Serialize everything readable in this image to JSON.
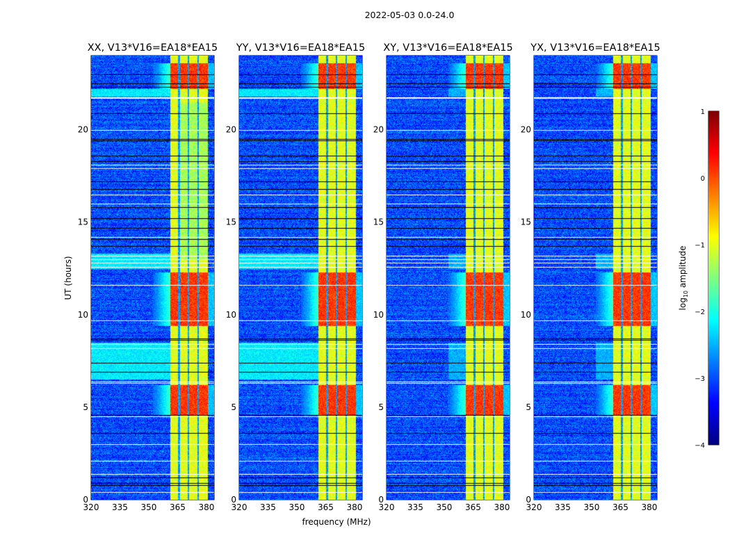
{
  "chart_data": {
    "type": "heatmap",
    "suptitle": "2022-05-03 0.0-24.0",
    "xlabel": "frequency (MHz)",
    "ylabel": "UT (hours)",
    "xlim": [
      320,
      384
    ],
    "ylim": [
      0,
      24
    ],
    "xticks": [
      "320",
      "335",
      "350",
      "365",
      "380"
    ],
    "xtick_values": [
      320,
      335,
      350,
      365,
      380
    ],
    "yticks": [
      "0",
      "5",
      "10",
      "15",
      "20"
    ],
    "ytick_values": [
      0,
      5,
      10,
      15,
      20
    ],
    "panels": [
      {
        "title": "XX, V13*V16=EA18*EA15",
        "pol": "XX"
      },
      {
        "title": "YY, V13*V16=EA18*EA15",
        "pol": "YY"
      },
      {
        "title": "XY, V13*V16=EA18*EA15",
        "pol": "XY"
      },
      {
        "title": "YX, V13*V16=EA18*EA15",
        "pol": "YX"
      }
    ],
    "colorbar": {
      "label": "log10 amplitude",
      "label_main": "log",
      "label_sub": "10",
      "label_rest": " amplitude",
      "range": [
        -4,
        1
      ],
      "ticks": [
        "1",
        "0",
        "−1",
        "−2",
        "−3",
        "−4"
      ],
      "tick_values": [
        1,
        0,
        -1,
        -2,
        -3,
        -4
      ],
      "colormap": "jet"
    },
    "background_level": -3.0,
    "rfi_band_mhz": [
      361,
      380.5
    ],
    "rfi_subband_edges_mhz": [
      361,
      365.5,
      370.5,
      375.5,
      380.5
    ],
    "strong_rfi_hours": [
      [
        22.2,
        23.6
      ],
      [
        9.4,
        12.3
      ],
      [
        4.6,
        6.2
      ]
    ],
    "elevated_background_hours": [
      [
        21.8,
        22.2
      ],
      [
        6.5,
        8.5
      ],
      [
        12.5,
        13.3
      ]
    ],
    "flagged_white_hours": [
      21.7,
      21.75,
      20.0,
      18.1,
      17.9,
      16.5,
      16.0,
      14.2,
      13.2,
      13.0,
      12.8,
      12.6,
      11.6,
      9.7,
      8.4,
      8.2,
      6.4,
      6.3,
      4.5,
      3.0,
      2.1,
      1.4,
      0.4
    ],
    "flagged_black_hours": [
      23.0,
      22.5,
      22.3,
      20.9,
      19.5,
      19.4,
      18.6,
      18.3,
      17.2,
      16.8,
      15.8,
      15.2,
      14.7,
      14.1,
      13.7,
      8.7,
      8.65,
      7.4,
      6.9,
      4.6,
      3.6,
      1.2,
      0.9,
      0.8
    ]
  }
}
